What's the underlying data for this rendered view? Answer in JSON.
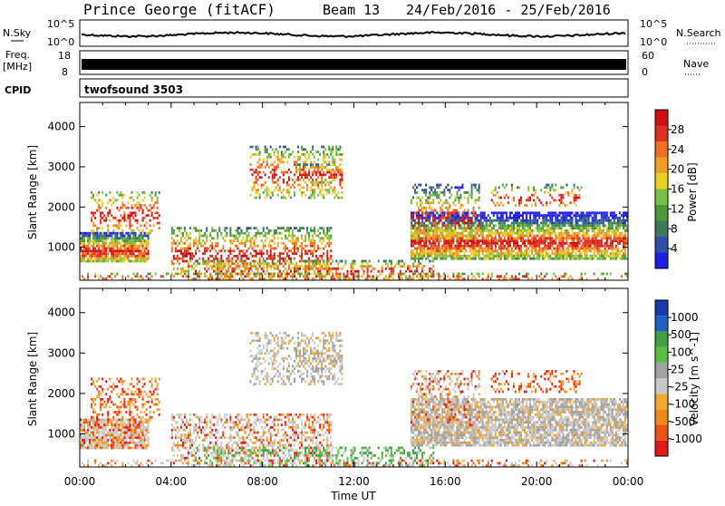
{
  "header": {
    "station": "Prince George (fitACF)",
    "beam": "Beam 13",
    "date_range": "24/Feb/2016 - 25/Feb/2016"
  },
  "top_panels": {
    "nsky_label": "N.Sky",
    "nsearch_label": "N.Search",
    "nsky_ticks_left": [
      "10^5",
      "10^0"
    ],
    "nsearch_ticks_right": [
      "10^5",
      "10^0"
    ],
    "freq_label_1": "Freq.",
    "freq_label_2": "[MHz]",
    "freq_ticks_left": [
      "18",
      "8"
    ],
    "nave_label": "Nave",
    "nave_ticks_right": [
      "60",
      "0"
    ],
    "cpid_label": "CPID",
    "cpid_value": "twofsound 3503"
  },
  "colors": {
    "power": [
      "#1f1fe8",
      "#3050a8",
      "#3a7a5a",
      "#4a9a3a",
      "#7ac040",
      "#e6d020",
      "#f0a020",
      "#f07020",
      "#e03020",
      "#d01010"
    ],
    "velocity": [
      "#e01818",
      "#f05010",
      "#f08818",
      "#f0a830",
      "#c8c8c8",
      "#a0a0a0",
      "#58c040",
      "#40a040",
      "#2060c0",
      "#1838b0"
    ]
  },
  "chart_data": [
    {
      "type": "heatmap",
      "name": "power",
      "xlabel": "Time UT",
      "ylabel": "Slant Range [km]",
      "xlim": [
        "00:00",
        "24:00"
      ],
      "ylim": [
        180,
        4600
      ],
      "x_ticks": [
        "00:00",
        "04:00",
        "08:00",
        "12:00",
        "16:00",
        "20:00",
        "00:00"
      ],
      "y_ticks": [
        1000,
        2000,
        3000,
        4000
      ],
      "colorbar": {
        "label": "Power [dB]",
        "ticks": [
          "4",
          "8",
          "12",
          "16",
          "20",
          "24",
          "28"
        ],
        "range": [
          0,
          30
        ]
      }
    },
    {
      "type": "heatmap",
      "name": "velocity",
      "xlabel": "Time UT",
      "ylabel": "Slant Range [km]",
      "xlim": [
        "00:00",
        "24:00"
      ],
      "ylim": [
        180,
        4600
      ],
      "x_ticks": [
        "00:00",
        "04:00",
        "08:00",
        "12:00",
        "16:00",
        "20:00",
        "00:00"
      ],
      "y_ticks": [
        1000,
        2000,
        3000,
        4000
      ],
      "colorbar": {
        "label": "Velocity [m s^-1]",
        "ticks": [
          "1000",
          "500",
          "100",
          "25",
          "-25",
          "-100",
          "-500",
          "-1000"
        ]
      }
    }
  ]
}
